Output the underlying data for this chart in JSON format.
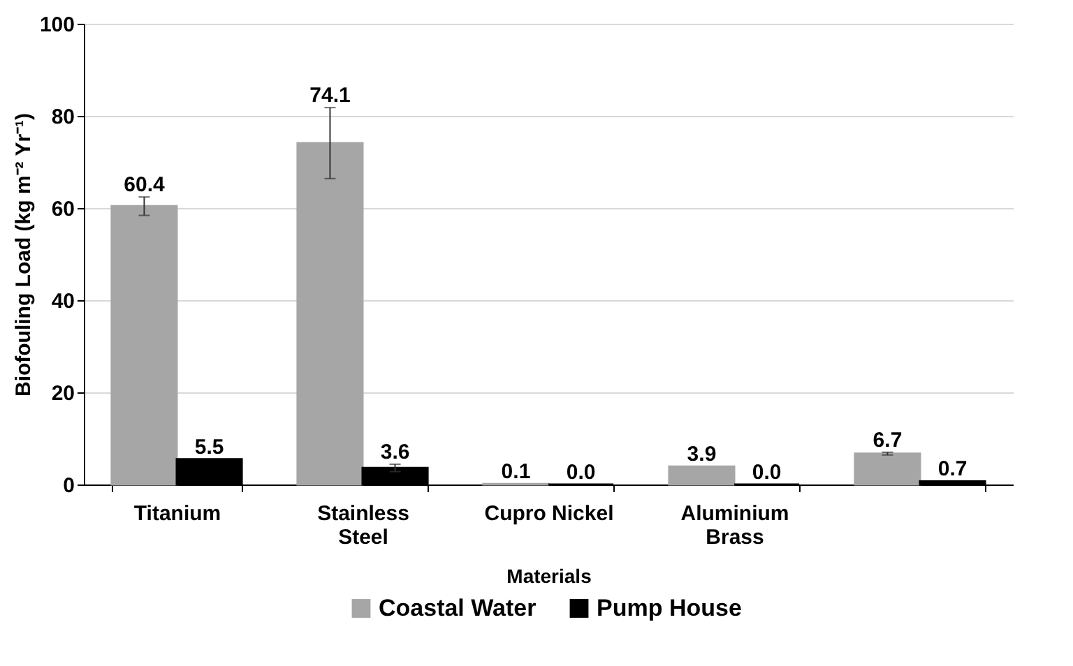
{
  "chart_data": {
    "type": "bar",
    "xlabel": "Materials",
    "ylabel": "Biofouling Load (kg m⁻² Yr⁻¹)",
    "categories": [
      "Titanium",
      "Stainless Steel",
      "Cupro Nickel",
      "Aluminium Brass",
      null
    ],
    "series": [
      {
        "name": "Coastal Water",
        "color": "#a6a6a6",
        "values": [
          60.4,
          74.1,
          0.1,
          3.9,
          6.7
        ],
        "errors": [
          2,
          7.7,
          null,
          null,
          0.3
        ],
        "value_labels": [
          "60.4",
          "74.1",
          "0.1",
          "3.9",
          "6.7"
        ]
      },
      {
        "name": "Pump House",
        "color": "#000000",
        "values": [
          5.5,
          3.6,
          0.0,
          0.0,
          0.7
        ],
        "errors": [
          null,
          0.8,
          null,
          null,
          null
        ],
        "value_labels": [
          "5.5",
          "3.6",
          "0.0",
          "0.0",
          "0.7"
        ]
      }
    ],
    "ylim": [
      0,
      100
    ],
    "yticks": [
      0,
      20,
      40,
      60,
      80,
      100
    ],
    "grid": "y",
    "legend": "bottom"
  }
}
